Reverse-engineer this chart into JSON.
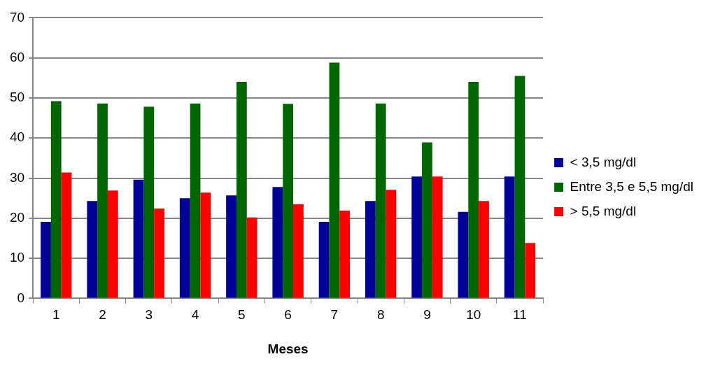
{
  "chart_data": {
    "type": "bar",
    "xlabel": "Meses",
    "categories": [
      "1",
      "2",
      "3",
      "4",
      "5",
      "6",
      "7",
      "8",
      "9",
      "10",
      "11"
    ],
    "series": [
      {
        "name": "< 3,5 mg/dl",
        "color": "#000099",
        "values": [
          19.1,
          24.3,
          29.6,
          25.0,
          25.7,
          27.8,
          19.1,
          24.3,
          30.4,
          21.6,
          30.4
        ]
      },
      {
        "name": "Entre 3,5 e 5,5 mg/dl",
        "color": "#006600",
        "values": [
          49.2,
          48.6,
          47.8,
          48.6,
          54.0,
          48.5,
          58.8,
          48.6,
          38.9,
          54.0,
          55.5
        ]
      },
      {
        "name": "> 5,5 mg/dl",
        "color": "#ff0000",
        "values": [
          31.4,
          26.9,
          22.4,
          26.4,
          20.2,
          23.5,
          21.9,
          27.1,
          30.4,
          24.3,
          13.8
        ]
      }
    ],
    "ylim": [
      0,
      70
    ],
    "yticks": [
      0,
      10,
      20,
      30,
      40,
      50,
      60,
      70
    ],
    "grid": "y",
    "legend": "right"
  }
}
